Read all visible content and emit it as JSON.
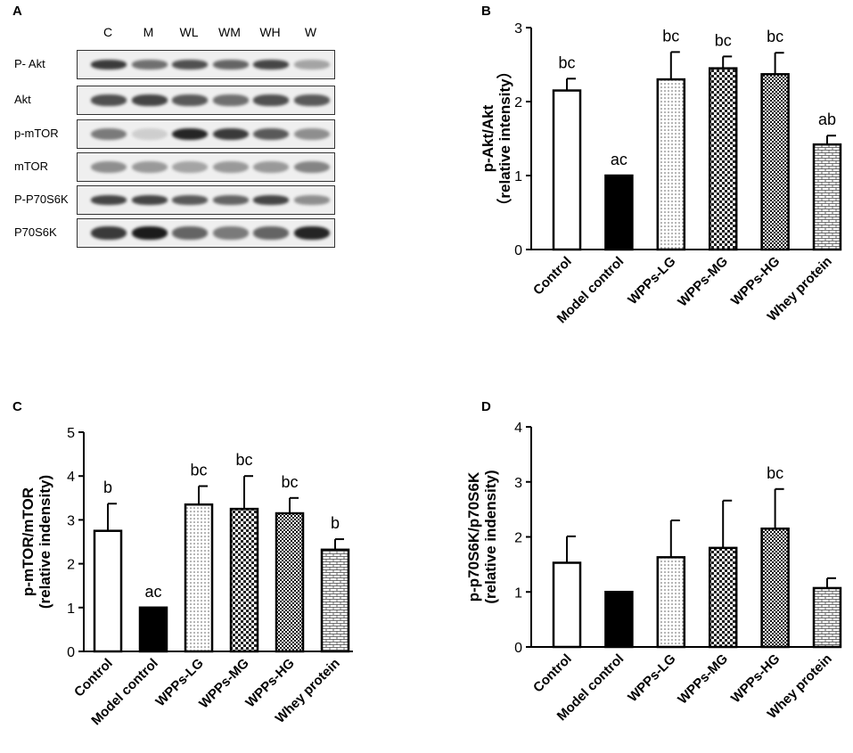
{
  "panels": {
    "a": "A",
    "b": "B",
    "c": "C",
    "d": "D"
  },
  "blot": {
    "lanes": [
      "C",
      "M",
      "WL",
      "WM",
      "WH",
      "W"
    ],
    "rows": [
      {
        "label": "P- Akt",
        "intensity": [
          0.85,
          0.6,
          0.75,
          0.65,
          0.8,
          0.35
        ],
        "band_height": 0.35
      },
      {
        "label": "Akt",
        "intensity": [
          0.75,
          0.8,
          0.7,
          0.6,
          0.75,
          0.7
        ],
        "band_height": 0.4
      },
      {
        "label": "p-mTOR",
        "intensity": [
          0.55,
          0.15,
          0.95,
          0.85,
          0.7,
          0.45
        ],
        "band_height": 0.45
      },
      {
        "label": "mTOR",
        "intensity": [
          0.45,
          0.4,
          0.35,
          0.4,
          0.4,
          0.5
        ],
        "band_height": 0.45
      },
      {
        "label": "P-P70S6K",
        "intensity": [
          0.8,
          0.8,
          0.7,
          0.65,
          0.8,
          0.45
        ],
        "band_height": 0.35
      },
      {
        "label": "P70S6K",
        "intensity": [
          0.85,
          1.0,
          0.65,
          0.55,
          0.65,
          0.95
        ],
        "band_height": 0.5
      }
    ]
  },
  "chart_data": [
    {
      "type": "bar",
      "panel": "B",
      "categories": [
        "Control",
        "Model control",
        "WPPs-LG",
        "WPPs-MG",
        "WPPs-HG",
        "Whey protein"
      ],
      "values": [
        2.15,
        1.0,
        2.3,
        2.45,
        2.37,
        1.42
      ],
      "errors": [
        0.16,
        0.0,
        0.37,
        0.16,
        0.29,
        0.12
      ],
      "annotations": [
        "bc",
        "ac",
        "bc",
        "bc",
        "bc",
        "ab"
      ],
      "ylabel_line1": "p-Akt/Akt",
      "ylabel_line2": "（relative intensity）",
      "ylim": [
        0,
        3
      ],
      "yticks": [
        "0",
        "1",
        "2",
        "3"
      ]
    },
    {
      "type": "bar",
      "panel": "C",
      "categories": [
        "Control",
        "Model control",
        "WPPs-LG",
        "WPPs-MG",
        "WPPs-HG",
        "Whey protein"
      ],
      "values": [
        2.75,
        1.0,
        3.35,
        3.25,
        3.15,
        2.32
      ],
      "errors": [
        0.62,
        0.0,
        0.42,
        0.75,
        0.35,
        0.24
      ],
      "annotations": [
        "b",
        "ac",
        "bc",
        "bc",
        "bc",
        "b"
      ],
      "ylabel_line1": "p-mTOR/mTOR",
      "ylabel_line2": "(relative indensity)",
      "ylim": [
        0,
        5
      ],
      "yticks": [
        "0",
        "1",
        "2",
        "3",
        "4",
        "5"
      ]
    },
    {
      "type": "bar",
      "panel": "D",
      "categories": [
        "Control",
        "Model control",
        "WPPs-LG",
        "WPPs-MG",
        "WPPs-HG",
        "Whey protein"
      ],
      "values": [
        1.53,
        1.0,
        1.63,
        1.8,
        2.15,
        1.07
      ],
      "errors": [
        0.48,
        0.0,
        0.67,
        0.86,
        0.72,
        0.18
      ],
      "annotations": [
        "",
        "",
        "",
        "",
        "bc",
        ""
      ],
      "ylabel_line1": "p-p70S6K/p70S6K",
      "ylabel_line2": "(relative indensity)",
      "ylim": [
        0,
        4
      ],
      "yticks": [
        "0",
        "1",
        "2",
        "3",
        "4"
      ]
    }
  ],
  "fills": [
    "white",
    "black",
    "dots",
    "checker",
    "checker-dense",
    "bricks"
  ]
}
